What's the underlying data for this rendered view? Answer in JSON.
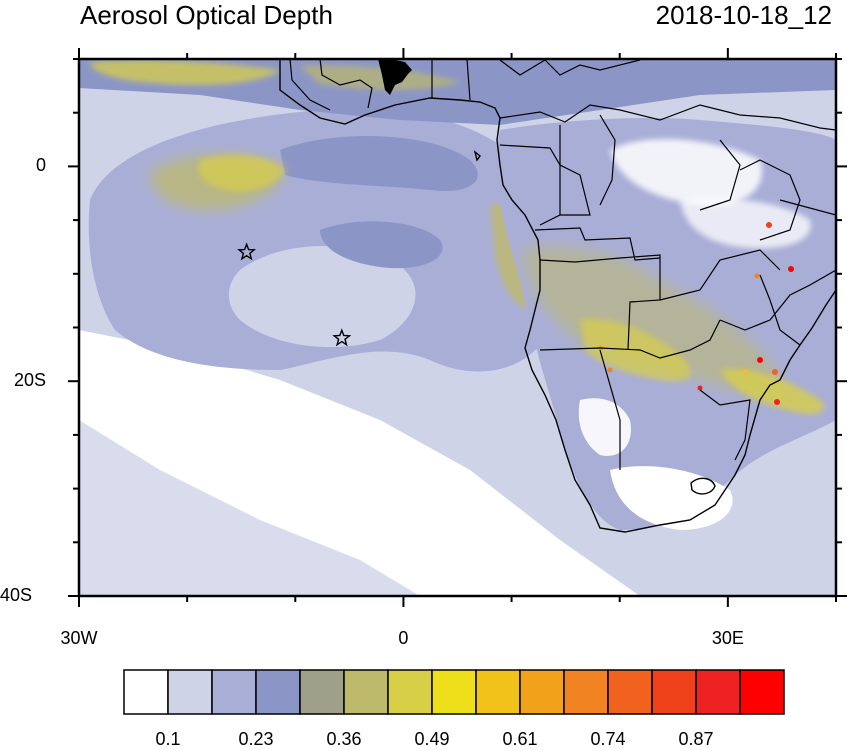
{
  "header": {
    "title": "Aerosol Optical Depth",
    "timestamp": "2018-10-18_12"
  },
  "axes": {
    "x_ticks": [
      {
        "label": "30W",
        "lon": -30
      },
      {
        "label": "0",
        "lon": 0
      },
      {
        "label": "30E",
        "lon": 30
      }
    ],
    "y_ticks": [
      {
        "label": "0",
        "lat": 0
      },
      {
        "label": "20S",
        "lat": -20
      },
      {
        "label": "40S",
        "lat": -40
      }
    ]
  },
  "map": {
    "lon_range": [
      -30,
      40
    ],
    "lat_range": [
      -40,
      10
    ],
    "markers": [
      {
        "symbol": "star",
        "lon": -14.5,
        "lat": -8
      },
      {
        "symbol": "star",
        "lon": -5.7,
        "lat": -16
      }
    ]
  },
  "colorbar": {
    "colors": [
      "#ffffff",
      "#ced3e8",
      "#a9aed7",
      "#8c96c6",
      "#9ea08a",
      "#bdb96a",
      "#d8cf48",
      "#ede01a",
      "#f1c21a",
      "#f1a21a",
      "#f18322",
      "#f0621e",
      "#f0421a",
      "#ee2222",
      "#ff0000"
    ],
    "labels": [
      "0.1",
      "0.23",
      "0.36",
      "0.49",
      "0.61",
      "0.74",
      "0.87"
    ]
  }
}
